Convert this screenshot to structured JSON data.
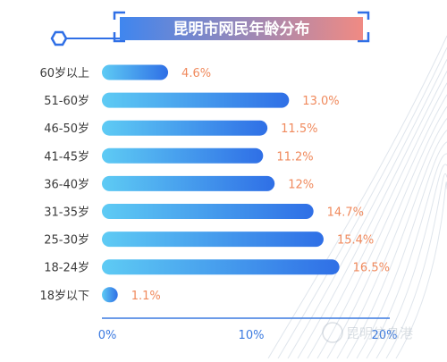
{
  "header": {
    "title": "昆明市网民年龄分布"
  },
  "colors": {
    "bar_start": "#5ecbf4",
    "bar_end": "#2f6fe6",
    "value_label": "#f08a5d",
    "category_label": "#3a3a3a",
    "tick_label": "#3b7ae0",
    "axis_line": "#3b7ae0",
    "title_bg_start": "#3f86ef",
    "title_bg_end": "#f08a83",
    "frame": "#2f6fe6"
  },
  "watermark": {
    "text": "昆明信息港"
  },
  "chart_data": {
    "type": "bar",
    "orientation": "horizontal",
    "title": "昆明市网民年龄分布",
    "categories": [
      "60岁以上",
      "51-60岁",
      "46-50岁",
      "41-45岁",
      "36-40岁",
      "31-35岁",
      "25-30岁",
      "18-24岁",
      "18岁以下"
    ],
    "values": [
      4.6,
      13.0,
      11.5,
      11.2,
      12,
      14.7,
      15.4,
      16.5,
      1.1
    ],
    "value_labels": [
      "4.6%",
      "13.0%",
      "11.5%",
      "11.2%",
      "12%",
      "14.7%",
      "15.4%",
      "16.5%",
      "1.1%"
    ],
    "xlim": [
      0,
      20
    ],
    "xticks": [
      0,
      10,
      20
    ],
    "xtick_labels": [
      "0%",
      "10%",
      "20%"
    ],
    "xlabel": "",
    "ylabel": "",
    "grid": false,
    "legend": "none"
  }
}
